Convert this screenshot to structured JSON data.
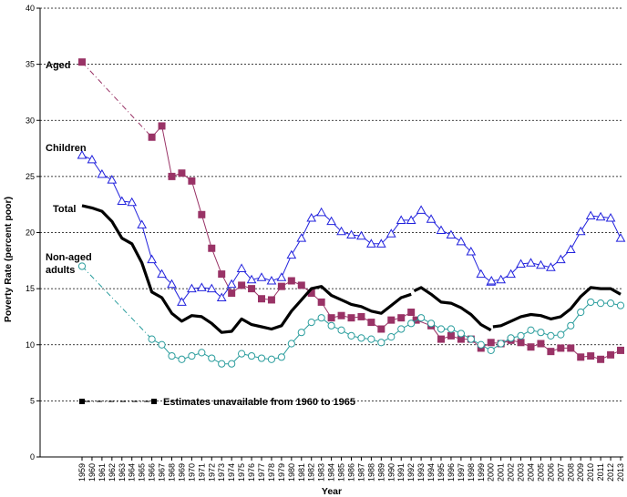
{
  "chart_data": {
    "type": "line",
    "title": "",
    "xlabel": "Year",
    "ylabel": "Poverty Rate (percent poor)",
    "ylim": [
      0,
      40
    ],
    "yticks": [
      0,
      5,
      10,
      15,
      20,
      25,
      30,
      35,
      40
    ],
    "grid": "horizontal dashed",
    "x": [
      1959,
      1960,
      1961,
      1962,
      1963,
      1964,
      1965,
      1966,
      1967,
      1968,
      1969,
      1970,
      1971,
      1972,
      1973,
      1974,
      1975,
      1976,
      1977,
      1978,
      1979,
      1980,
      1981,
      1982,
      1983,
      1984,
      1985,
      1986,
      1987,
      1988,
      1989,
      1990,
      1991,
      1992,
      1993,
      1994,
      1995,
      1996,
      1997,
      1998,
      1999,
      2000,
      2001,
      2002,
      2003,
      2004,
      2005,
      2006,
      2007,
      2008,
      2009,
      2010,
      2011,
      2012,
      2013
    ],
    "xtick_labels": [
      "1959",
      "1960",
      "1961",
      "1962",
      "1963",
      "1964",
      "1965",
      "1966",
      "1967",
      "1968",
      "1969",
      "1970",
      "1971",
      "1972",
      "1973",
      "1974",
      "1975",
      "1976",
      "1977",
      "1978",
      "1979",
      "1980",
      "1981",
      "1982",
      "1983",
      "1984",
      "1985",
      "1986",
      "1987",
      "1988",
      "1989",
      "1990",
      "1991",
      "1992",
      "1993",
      "1994",
      "1995",
      "1996",
      "1997",
      "1998",
      "1999",
      "2000",
      "2001",
      "2002",
      "2003",
      "2004",
      "2005",
      "2006",
      "2007",
      "2008",
      "2009",
      "2010",
      "2011",
      "2012",
      "2013"
    ],
    "series": [
      {
        "name": "Aged",
        "color": "#993366",
        "marker": "square",
        "points": [
          [
            1959,
            35.2
          ],
          [
            1966,
            28.5
          ],
          [
            1967,
            29.5
          ],
          [
            1968,
            25.0
          ],
          [
            1969,
            25.3
          ],
          [
            1970,
            24.6
          ],
          [
            1971,
            21.6
          ],
          [
            1972,
            18.6
          ],
          [
            1973,
            16.3
          ],
          [
            1974,
            14.6
          ],
          [
            1975,
            15.3
          ],
          [
            1976,
            15.0
          ],
          [
            1977,
            14.1
          ],
          [
            1978,
            14.0
          ],
          [
            1979,
            15.2
          ],
          [
            1980,
            15.7
          ],
          [
            1981,
            15.3
          ],
          [
            1982,
            14.6
          ],
          [
            1983,
            13.8
          ],
          [
            1984,
            12.4
          ],
          [
            1985,
            12.6
          ],
          [
            1986,
            12.4
          ],
          [
            1987,
            12.5
          ],
          [
            1988,
            12.0
          ],
          [
            1989,
            11.4
          ],
          [
            1990,
            12.2
          ],
          [
            1991,
            12.4
          ],
          [
            1992,
            12.9
          ],
          [
            1992.5,
            12.2
          ],
          [
            1994,
            11.7
          ],
          [
            1995,
            10.5
          ],
          [
            1996,
            10.8
          ],
          [
            1997,
            10.5
          ],
          [
            1998,
            10.5
          ],
          [
            1999,
            9.7
          ],
          [
            2000,
            10.2
          ],
          [
            2001,
            10.1
          ],
          [
            2002,
            10.4
          ],
          [
            2003,
            10.2
          ],
          [
            2004,
            9.8
          ],
          [
            2005,
            10.1
          ],
          [
            2006,
            9.4
          ],
          [
            2007,
            9.7
          ],
          [
            2008,
            9.7
          ],
          [
            2009,
            8.9
          ],
          [
            2010,
            9.0
          ],
          [
            2011,
            8.7
          ],
          [
            2012,
            9.1
          ],
          [
            2013,
            9.5
          ]
        ]
      },
      {
        "name": "Children",
        "color": "#2222dd",
        "marker": "triangle",
        "points": [
          [
            1959,
            26.9
          ],
          [
            1960,
            26.5
          ],
          [
            1961,
            25.2
          ],
          [
            1962,
            24.7
          ],
          [
            1963,
            22.8
          ],
          [
            1964,
            22.7
          ],
          [
            1965,
            20.7
          ],
          [
            1966,
            17.6
          ],
          [
            1967,
            16.3
          ],
          [
            1968,
            15.4
          ],
          [
            1969,
            13.8
          ],
          [
            1970,
            15.0
          ],
          [
            1971,
            15.1
          ],
          [
            1972,
            15.0
          ],
          [
            1973,
            14.2
          ],
          [
            1974,
            15.4
          ],
          [
            1975,
            16.8
          ],
          [
            1976,
            15.8
          ],
          [
            1977,
            16.0
          ],
          [
            1978,
            15.7
          ],
          [
            1979,
            16.0
          ],
          [
            1980,
            18.0
          ],
          [
            1981,
            19.5
          ],
          [
            1982,
            21.3
          ],
          [
            1983,
            21.8
          ],
          [
            1984,
            21.0
          ],
          [
            1985,
            20.1
          ],
          [
            1986,
            19.8
          ],
          [
            1987,
            19.7
          ],
          [
            1988,
            19.0
          ],
          [
            1989,
            19.0
          ],
          [
            1990,
            19.9
          ],
          [
            1991,
            21.1
          ],
          [
            1992,
            21.1
          ],
          [
            1993,
            22.0
          ],
          [
            1994,
            21.2
          ],
          [
            1995,
            20.2
          ],
          [
            1996,
            19.8
          ],
          [
            1997,
            19.2
          ],
          [
            1998,
            18.3
          ],
          [
            1999,
            16.3
          ],
          [
            2000,
            15.6
          ],
          [
            2000.05,
            15.7
          ],
          [
            2001,
            15.8
          ],
          [
            2002,
            16.3
          ],
          [
            2003,
            17.2
          ],
          [
            2004,
            17.3
          ],
          [
            2005,
            17.1
          ],
          [
            2006,
            16.9
          ],
          [
            2007,
            17.6
          ],
          [
            2008,
            18.5
          ],
          [
            2009,
            20.1
          ],
          [
            2010,
            21.5
          ],
          [
            2011,
            21.4
          ],
          [
            2012,
            21.3
          ],
          [
            2013,
            19.5
          ]
        ]
      },
      {
        "name": "Total",
        "color": "#000000",
        "marker": "none",
        "segments": [
          [
            [
              1959,
              22.4
            ],
            [
              1960,
              22.2
            ],
            [
              1961,
              21.9
            ],
            [
              1962,
              21.0
            ],
            [
              1963,
              19.5
            ],
            [
              1964,
              19.0
            ],
            [
              1965,
              17.3
            ],
            [
              1966,
              14.7
            ],
            [
              1967,
              14.2
            ],
            [
              1968,
              12.8
            ],
            [
              1969,
              12.1
            ],
            [
              1970,
              12.6
            ],
            [
              1971,
              12.5
            ],
            [
              1972,
              11.9
            ],
            [
              1973,
              11.1
            ],
            [
              1974,
              11.2
            ],
            [
              1975,
              12.3
            ],
            [
              1976,
              11.8
            ],
            [
              1977,
              11.6
            ],
            [
              1978,
              11.4
            ],
            [
              1979,
              11.7
            ],
            [
              1980,
              13.0
            ],
            [
              1981,
              14.0
            ],
            [
              1982,
              15.0
            ],
            [
              1983,
              15.2
            ],
            [
              1984,
              14.4
            ],
            [
              1985,
              14.0
            ],
            [
              1986,
              13.6
            ],
            [
              1987,
              13.4
            ],
            [
              1988,
              13.0
            ],
            [
              1989,
              12.8
            ],
            [
              1990,
              13.5
            ],
            [
              1991,
              14.2
            ],
            [
              1992,
              14.5
            ]
          ],
          [
            [
              1992.3,
              14.8
            ],
            [
              1993,
              15.1
            ],
            [
              1994,
              14.5
            ],
            [
              1995,
              13.8
            ],
            [
              1996,
              13.7
            ],
            [
              1997,
              13.3
            ],
            [
              1998,
              12.7
            ],
            [
              1999,
              11.8
            ],
            [
              2000,
              11.3
            ]
          ],
          [
            [
              2000.2,
              11.6
            ],
            [
              2001,
              11.7
            ],
            [
              2002,
              12.1
            ],
            [
              2003,
              12.5
            ],
            [
              2004,
              12.7
            ],
            [
              2005,
              12.6
            ],
            [
              2006,
              12.3
            ],
            [
              2007,
              12.5
            ],
            [
              2008,
              13.2
            ],
            [
              2009,
              14.3
            ],
            [
              2010,
              15.1
            ],
            [
              2011,
              15.0
            ],
            [
              2012,
              15.0
            ],
            [
              2013,
              14.5
            ]
          ]
        ]
      },
      {
        "name": "Non-aged adults",
        "label_lines": [
          "Non-aged",
          "adults"
        ],
        "color": "#2a9d9d",
        "marker": "circle",
        "points": [
          [
            1959,
            17.0
          ],
          [
            1966,
            10.5
          ],
          [
            1967,
            10.0
          ],
          [
            1968,
            9.0
          ],
          [
            1969,
            8.7
          ],
          [
            1970,
            9.0
          ],
          [
            1971,
            9.3
          ],
          [
            1972,
            8.8
          ],
          [
            1973,
            8.3
          ],
          [
            1974,
            8.3
          ],
          [
            1975,
            9.2
          ],
          [
            1976,
            9.0
          ],
          [
            1977,
            8.8
          ],
          [
            1978,
            8.7
          ],
          [
            1979,
            8.9
          ],
          [
            1980,
            10.1
          ],
          [
            1981,
            11.1
          ],
          [
            1982,
            12.0
          ],
          [
            1983,
            12.4
          ],
          [
            1984,
            11.7
          ],
          [
            1985,
            11.3
          ],
          [
            1986,
            10.8
          ],
          [
            1987,
            10.6
          ],
          [
            1988,
            10.5
          ],
          [
            1989,
            10.2
          ],
          [
            1990,
            10.7
          ],
          [
            1991,
            11.4
          ],
          [
            1992,
            11.9
          ],
          [
            1993,
            12.4
          ],
          [
            1994,
            11.9
          ],
          [
            1995,
            11.4
          ],
          [
            1996,
            11.4
          ],
          [
            1997,
            11.0
          ],
          [
            1998,
            10.5
          ],
          [
            1999,
            10.0
          ],
          [
            2000,
            9.5
          ],
          [
            2001,
            10.1
          ],
          [
            2002,
            10.6
          ],
          [
            2003,
            10.8
          ],
          [
            2004,
            11.3
          ],
          [
            2005,
            11.1
          ],
          [
            2006,
            10.8
          ],
          [
            2007,
            10.9
          ],
          [
            2008,
            11.7
          ],
          [
            2009,
            12.9
          ],
          [
            2010,
            13.8
          ],
          [
            2011,
            13.7
          ],
          [
            2012,
            13.7
          ],
          [
            2013,
            13.5
          ]
        ]
      }
    ],
    "annotation": "Estimates  unavailable from 1960 to 1965"
  }
}
